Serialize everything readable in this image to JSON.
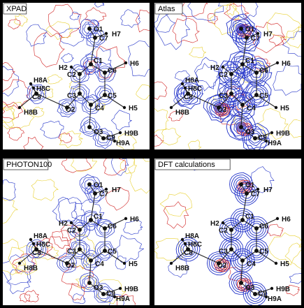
{
  "panels": [
    {
      "id": "xpad",
      "title": "XPAD",
      "map": "weak"
    },
    {
      "id": "atlas",
      "title": "Atlas",
      "map": "strong"
    },
    {
      "id": "photon",
      "title": "PHOTON100",
      "map": "weak"
    },
    {
      "id": "dft",
      "title": "DFT calculations",
      "map": "smooth"
    }
  ],
  "molecule": {
    "atoms": [
      {
        "id": "O1",
        "label": "O1"
      },
      {
        "id": "C7",
        "label": "C7"
      },
      {
        "id": "H7",
        "label": "H7"
      },
      {
        "id": "C1",
        "label": "C1"
      },
      {
        "id": "C2",
        "label": "C2"
      },
      {
        "id": "C6",
        "label": "C6"
      },
      {
        "id": "H2",
        "label": "H2"
      },
      {
        "id": "H6",
        "label": "H6"
      },
      {
        "id": "C3",
        "label": "C3"
      },
      {
        "id": "C5",
        "label": "C5"
      },
      {
        "id": "C4",
        "label": "C4"
      },
      {
        "id": "H5",
        "label": "H5"
      },
      {
        "id": "O2",
        "label": "O2"
      },
      {
        "id": "C8",
        "label": "C8"
      },
      {
        "id": "H8A",
        "label": "H8A"
      },
      {
        "id": "H8C",
        "label": "H8C"
      },
      {
        "id": "H8B",
        "label": "H8B"
      },
      {
        "id": "O3",
        "label": "O3"
      },
      {
        "id": "C9",
        "label": "C9"
      },
      {
        "id": "H9B",
        "label": "H9B"
      },
      {
        "id": "H9A",
        "label": "H9A"
      }
    ]
  },
  "colors": {
    "positive": "#2233c8",
    "negative": "#d02020",
    "zero": "#e8d030",
    "background": "#ffffff"
  }
}
